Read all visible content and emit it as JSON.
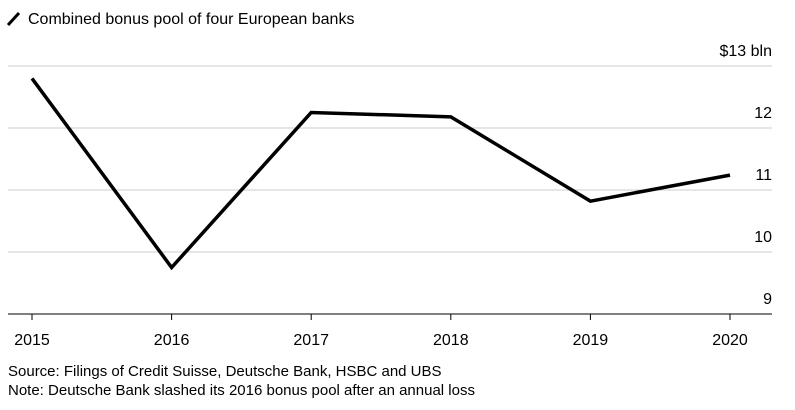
{
  "chart_data": {
    "type": "line",
    "title": "",
    "xlabel": "",
    "ylabel": "",
    "categories": [
      "2015",
      "2016",
      "2017",
      "2018",
      "2019",
      "2020"
    ],
    "series": [
      {
        "name": "Combined bonus pool of four European banks",
        "values": [
          12.8,
          9.75,
          12.25,
          12.18,
          10.82,
          11.24
        ]
      }
    ],
    "y_ticks": [
      {
        "value": 9,
        "label": "9"
      },
      {
        "value": 10,
        "label": "10"
      },
      {
        "value": 11,
        "label": "11"
      },
      {
        "value": 12,
        "label": "12"
      },
      {
        "value": 13,
        "label": "$13 bln"
      }
    ],
    "ylim": [
      9,
      13
    ],
    "grid": true,
    "legend_position": "top-left",
    "line_color": "#000000"
  },
  "footer": {
    "source": "Source: Filings of Credit Suisse, Deutsche Bank, HSBC and UBS",
    "note": "Note: Deutsche Bank slashed its 2016 bonus pool after an annual loss"
  }
}
